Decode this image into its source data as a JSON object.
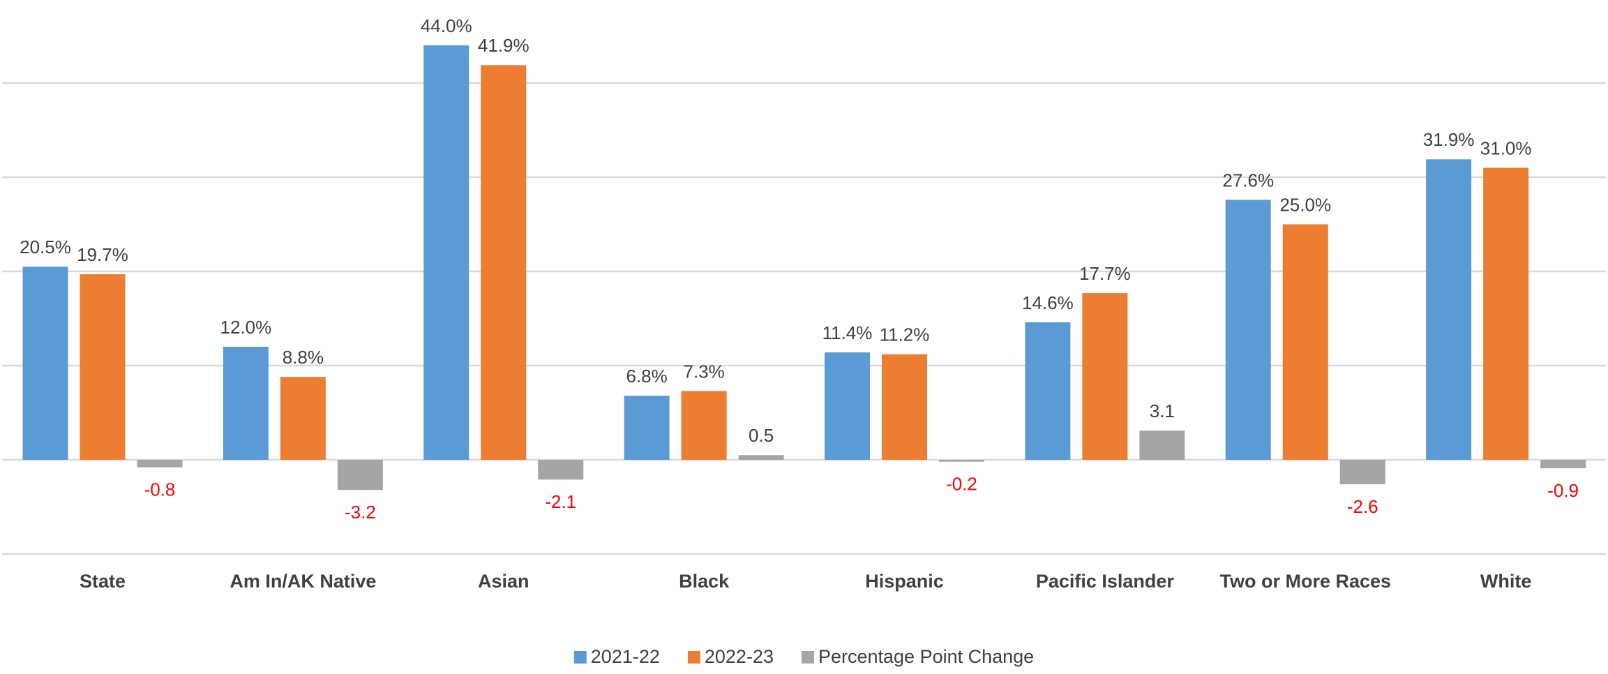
{
  "chart_data": {
    "type": "bar",
    "categories": [
      "State",
      "Am In/AK Native",
      "Asian",
      "Black",
      "Hispanic",
      "Pacific Islander",
      "Two or More Races",
      "White"
    ],
    "series": [
      {
        "name": "2021-22",
        "color": "#5b9bd5",
        "values": [
          20.5,
          12.0,
          44.0,
          6.8,
          11.4,
          14.6,
          27.6,
          31.9
        ],
        "value_labels": [
          "20.5%",
          "12.0%",
          "44.0%",
          "6.8%",
          "11.4%",
          "14.6%",
          "27.6%",
          "31.9%"
        ]
      },
      {
        "name": "2022-23",
        "color": "#ed7d31",
        "values": [
          19.7,
          8.8,
          41.9,
          7.3,
          11.2,
          17.7,
          25.0,
          31.0
        ],
        "value_labels": [
          "19.7%",
          "8.8%",
          "41.9%",
          "7.3%",
          "11.2%",
          "17.7%",
          "25.0%",
          "31.0%"
        ]
      },
      {
        "name": "Percentage Point Change",
        "color": "#a5a5a5",
        "values": [
          -0.8,
          -3.2,
          -2.1,
          0.5,
          -0.2,
          3.1,
          -2.6,
          -0.9
        ]
      }
    ],
    "ylim": [
      -10,
      48
    ],
    "yticks": [
      -10,
      0,
      10,
      20,
      30,
      40
    ],
    "grid": true,
    "negative_label_color": "#ff0000",
    "legend": "bottom"
  }
}
